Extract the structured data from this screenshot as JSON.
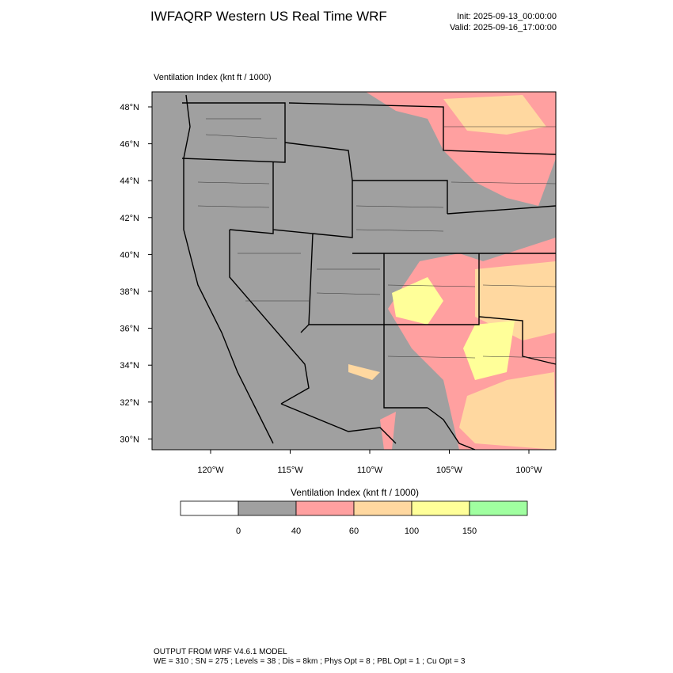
{
  "header": {
    "title": "IWFAQRP Western US Real Time WRF",
    "init": "Init: 2025-09-13_00:00:00",
    "valid": "Valid: 2025-09-16_17:00:00"
  },
  "map": {
    "label": "Ventilation Index   (knt ft / 1000)",
    "lat_labels": [
      "48°N",
      "46°N",
      "44°N",
      "42°N",
      "40°N",
      "38°N",
      "36°N",
      "34°N",
      "32°N",
      "30°N"
    ],
    "lon_labels": [
      "120°W",
      "115°W",
      "110°W",
      "105°W",
      "100°W"
    ]
  },
  "colorbar": {
    "title": "Ventilation Index   (knt ft / 1000)",
    "colors": [
      "#ffffff",
      "#a0a0a0",
      "#ffa0a0",
      "#ffd8a0",
      "#ffff99",
      "#a0ffa0"
    ],
    "labels": [
      "0",
      "40",
      "60",
      "100",
      "150"
    ]
  },
  "footer": {
    "line1": "OUTPUT FROM WRF V4.6.1 MODEL",
    "line2": "WE = 310 ; SN = 275 ; Levels = 38 ; Dis = 8km ; Phys Opt = 8 ; PBL Opt = 1 ; Cu Opt = 3"
  }
}
